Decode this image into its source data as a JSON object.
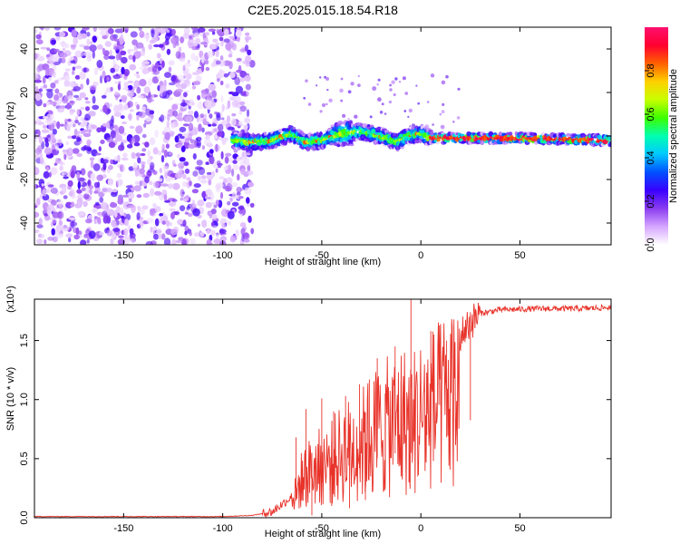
{
  "title": "C2E5.2025.015.18.54.R18",
  "chart_data": [
    {
      "type": "heatmap",
      "description_units": "Height (km) vs Frequency (Hz), colour = normalized spectral amplitude",
      "xlabel": "Height of straight line (km)",
      "ylabel": "Frequency (Hz)",
      "xlim": [
        -195,
        96
      ],
      "ylim": [
        -50,
        50
      ],
      "xticks": [
        -150,
        -100,
        -50,
        0,
        50
      ],
      "yticks": [
        -40,
        -20,
        0,
        20,
        40
      ],
      "colorbar": {
        "label": "Normalized spectral amplitude",
        "range": [
          0,
          1
        ],
        "ticks": [
          "0.0",
          "0.2",
          "0.4",
          "0.6",
          "0.8"
        ],
        "tick_values": [
          0,
          0.2,
          0.4,
          0.6,
          0.8
        ],
        "colors": [
          "#ffffff",
          "#d6a6ff",
          "#8a3cf0",
          "#3a00ff",
          "#0050ff",
          "#00c8ff",
          "#00ffb0",
          "#3cff00",
          "#c8ff00",
          "#ffd000",
          "#ff6000",
          "#ff0030",
          "#ff1070"
        ]
      },
      "noise_region_x": [
        -195,
        -85
      ],
      "ridge": [
        {
          "x": -95,
          "y": -2
        },
        {
          "x": -85,
          "y": -3
        },
        {
          "x": -75,
          "y": -2
        },
        {
          "x": -65,
          "y": 1
        },
        {
          "x": -58,
          "y": -3
        },
        {
          "x": -50,
          "y": -2
        },
        {
          "x": -40,
          "y": 1
        },
        {
          "x": -30,
          "y": 2
        },
        {
          "x": -20,
          "y": 0
        },
        {
          "x": -12,
          "y": -3
        },
        {
          "x": -7,
          "y": 0
        },
        {
          "x": 0,
          "y": 1
        },
        {
          "x": 5,
          "y": -1
        },
        {
          "x": 20,
          "y": -1
        },
        {
          "x": 50,
          "y": -1
        },
        {
          "x": 96,
          "y": -2
        }
      ]
    },
    {
      "type": "line",
      "xlabel": "Height of straight line (km)",
      "ylabel": "SNR (10 * v/v)",
      "yscale_label": "(x10⁴)",
      "xlim": [
        -195,
        96
      ],
      "ylim": [
        0,
        1.85
      ],
      "xticks": [
        -150,
        -100,
        -50,
        0,
        50
      ],
      "yticks": [
        "0.0",
        "0.5",
        "1.0",
        "1.5"
      ],
      "ytick_values": [
        0,
        0.5,
        1.0,
        1.5
      ],
      "series": [
        {
          "color": "#e8332a",
          "points": [
            {
              "x": -195,
              "y": 0.01
            },
            {
              "x": -150,
              "y": 0.01
            },
            {
              "x": -100,
              "y": 0.01
            },
            {
              "x": -85,
              "y": 0.02
            },
            {
              "x": -75,
              "y": 0.05
            },
            {
              "x": -65,
              "y": 0.18
            },
            {
              "x": -60,
              "y": 0.45
            },
            {
              "x": -55,
              "y": 0.55
            },
            {
              "x": -50,
              "y": 0.6
            },
            {
              "x": -45,
              "y": 0.65
            },
            {
              "x": -40,
              "y": 0.75
            },
            {
              "x": -35,
              "y": 0.8
            },
            {
              "x": -30,
              "y": 0.85
            },
            {
              "x": -25,
              "y": 0.95
            },
            {
              "x": -20,
              "y": 1.05
            },
            {
              "x": -15,
              "y": 1.05
            },
            {
              "x": -10,
              "y": 1.15
            },
            {
              "x": -5,
              "y": 1.1
            },
            {
              "x": 0,
              "y": 1.2
            },
            {
              "x": 5,
              "y": 1.25
            },
            {
              "x": 10,
              "y": 1.3
            },
            {
              "x": 15,
              "y": 1.4
            },
            {
              "x": 20,
              "y": 1.55
            },
            {
              "x": 25,
              "y": 1.65
            },
            {
              "x": 30,
              "y": 1.73
            },
            {
              "x": 40,
              "y": 1.76
            },
            {
              "x": 60,
              "y": 1.77
            },
            {
              "x": 80,
              "y": 1.77
            },
            {
              "x": 96,
              "y": 1.78
            }
          ],
          "spikes": [
            {
              "x": -63,
              "y": 0.68
            },
            {
              "x": -58,
              "y": 0.92
            },
            {
              "x": -50,
              "y": 1.01
            },
            {
              "x": -44,
              "y": 0.9
            },
            {
              "x": -38,
              "y": 1.03
            },
            {
              "x": -31,
              "y": 1.13
            },
            {
              "x": -26,
              "y": 1.17
            },
            {
              "x": -22,
              "y": 1.35
            },
            {
              "x": -13,
              "y": 1.45
            },
            {
              "x": -5,
              "y": 1.85
            },
            {
              "x": 5,
              "y": 1.58
            },
            {
              "x": 13,
              "y": 1.5
            },
            {
              "x": 25,
              "y": 1.74
            }
          ],
          "dips": [
            {
              "x": -55,
              "y": 0.02
            },
            {
              "x": -45,
              "y": 0.1
            },
            {
              "x": -36,
              "y": 0.08
            },
            {
              "x": -28,
              "y": 0.15
            },
            {
              "x": -18,
              "y": 0.25
            },
            {
              "x": -10,
              "y": 0.35
            },
            {
              "x": -6,
              "y": 0.3
            },
            {
              "x": 3,
              "y": 0.7
            },
            {
              "x": 10,
              "y": 0.95
            },
            {
              "x": 15,
              "y": 1.05
            }
          ]
        }
      ]
    }
  ]
}
